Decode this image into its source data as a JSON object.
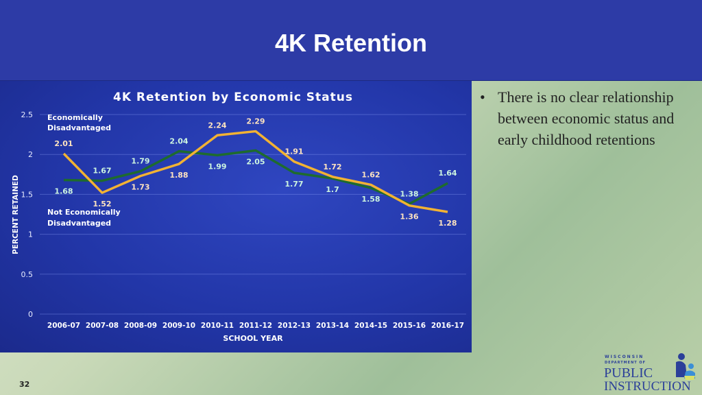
{
  "slide": {
    "title": "4K Retention",
    "page_number": "32",
    "bullets": [
      "There is no clear relationship between economic status and early childhood retentions"
    ],
    "logo": {
      "line1": "WISCONSIN",
      "line2": "DEPARTMENT OF",
      "line3": "PUBLIC",
      "line4": "INSTRUCTION"
    }
  },
  "chart_data": {
    "type": "line",
    "title": "4K Retention by Economic Status",
    "xlabel": "SCHOOL YEAR",
    "ylabel": "PERCENT RETAINED",
    "ylim": [
      0,
      2.5
    ],
    "yticks": [
      "0",
      "0.5",
      "1",
      "1.5",
      "2",
      "2.5"
    ],
    "grid": true,
    "categories": [
      "2006-07",
      "2007-08",
      "2008-09",
      "2009-10",
      "2010-11",
      "2011-12",
      "2012-13",
      "2013-14",
      "2014-15",
      "2015-16",
      "2016-17"
    ],
    "series": [
      {
        "name": "Economically Disadvantaged",
        "color": "#f2b233",
        "values": [
          2.01,
          1.52,
          1.73,
          1.88,
          2.24,
          2.29,
          1.91,
          1.72,
          1.62,
          1.36,
          1.28
        ]
      },
      {
        "name": "Not Economically Disadvantaged",
        "color": "#1e6b2e",
        "values": [
          1.68,
          1.67,
          1.79,
          2.04,
          1.99,
          2.05,
          1.77,
          1.7,
          1.58,
          1.38,
          1.64
        ]
      }
    ]
  }
}
